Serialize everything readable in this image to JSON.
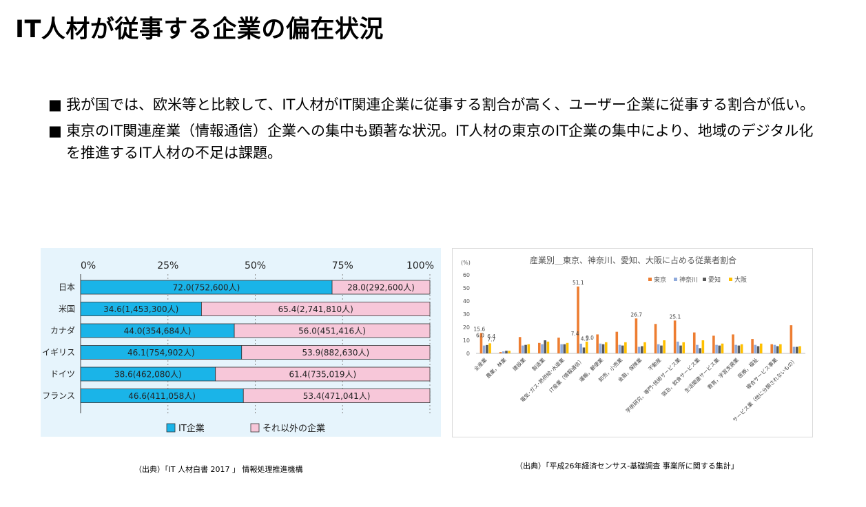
{
  "title": "IT人材が従事する企業の偏在状況",
  "bullets": [
    {
      "marker": "■",
      "text": "我が国では、欧米等と比較して、IT人材がIT関連企業に従事する割合が高く、ユーザー企業に従事する割合が低い。"
    },
    {
      "marker": "■",
      "text": "東京のIT関連産業（情報通信）企業への集中も顕著な状況。IT人材の東京のIT企業の集中により、地域のデジタル化を推進するIT人材の不足は課題。"
    }
  ],
  "source_left": "（出典）「IT 人材白書 2017 」 情報処理推進機構",
  "source_right": "（出典）「平成26年経済センサス-基礎調査 事業所に関する集計」",
  "chart_data": [
    {
      "type": "bar",
      "orientation": "horizontal",
      "stacked": true,
      "x_ticks": [
        "0%",
        "25%",
        "50%",
        "75%",
        "100%"
      ],
      "xlim": [
        0,
        100
      ],
      "categories": [
        "日本",
        "米国",
        "カナダ",
        "イギリス",
        "ドイツ",
        "フランス"
      ],
      "series": [
        {
          "name": "IT企業",
          "color": "#1ab4e8",
          "values": [
            72.0,
            34.6,
            44.0,
            46.1,
            38.6,
            46.6
          ],
          "labels": [
            "72.0(752,600人)",
            "34.6(1,453,300人)",
            "44.0(354,684人)",
            "46.1(754,902人)",
            "38.6(462,080人)",
            "46.6(411,058人)"
          ]
        },
        {
          "name": "それ以外の企業",
          "color": "#f7c7d9",
          "values": [
            28.0,
            65.4,
            56.0,
            53.9,
            61.4,
            53.4
          ],
          "labels": [
            "28.0(292,600人)",
            "65.4(2,741,810人)",
            "56.0(451,416人)",
            "53.9(882,630人)",
            "61.4(735,019人)",
            "53.4(471,041人)"
          ]
        }
      ],
      "legend_position": "bottom"
    },
    {
      "type": "bar",
      "title": "産業別＿東京、神奈川、愛知、大阪に占める従業者割合",
      "ylabel": "(%)",
      "ylim": [
        0,
        60
      ],
      "y_ticks": [
        0,
        10,
        20,
        30,
        40,
        50,
        60
      ],
      "categories": [
        "全産業",
        "農業，林業",
        "建設業",
        "製造業",
        "電気･ガス･熱供給･水道業",
        "IT産業（情報通信）",
        "運輸，郵便業",
        "卸売，小売業",
        "金融，保険業",
        "不動産",
        "学術研究，専門･技術サービス業",
        "宿泊，飲食サービス業",
        "生活関連サービス業",
        "教育，学習支援業",
        "医療，福祉",
        "複合サービス事業",
        "サービス業（他に分類されないもの）"
      ],
      "series": [
        {
          "name": "東京",
          "color": "#ed7d31",
          "values": [
            15.6,
            1.0,
            12.5,
            8.0,
            12.0,
            51.1,
            14.5,
            16.5,
            26.7,
            22.5,
            25.1,
            16.0,
            13.5,
            14.5,
            11.0,
            7.0,
            21.5
          ]
        },
        {
          "name": "神奈川",
          "color": "#8faadc",
          "values": [
            6.0,
            1.5,
            6.0,
            7.0,
            7.0,
            7.4,
            7.5,
            6.5,
            5.0,
            7.0,
            9.0,
            6.5,
            6.5,
            6.5,
            6.5,
            6.5,
            5.0
          ]
        },
        {
          "name": "愛知",
          "color": "#595959",
          "values": [
            6.4,
            2.0,
            6.5,
            10.0,
            7.0,
            4.5,
            7.0,
            6.0,
            5.5,
            6.0,
            6.0,
            4.0,
            6.0,
            6.0,
            5.5,
            5.5,
            5.0
          ]
        },
        {
          "name": "大阪",
          "color": "#ffc000",
          "values": [
            7.7,
            2.0,
            7.0,
            9.0,
            8.0,
            9.0,
            8.5,
            8.5,
            8.5,
            10.0,
            8.5,
            10.0,
            7.5,
            7.0,
            7.5,
            7.0,
            5.5
          ]
        }
      ],
      "data_labels": [
        {
          "category": "全産業",
          "series": "東京",
          "text": "15.6"
        },
        {
          "category": "全産業",
          "series": "神奈川",
          "text": "6.0"
        },
        {
          "category": "全産業",
          "series": "愛知",
          "text": "6.4"
        },
        {
          "category": "全産業",
          "series": "大阪",
          "text": "7.7"
        },
        {
          "category": "IT産業（情報通信）",
          "series": "東京",
          "text": "51.1"
        },
        {
          "category": "IT産業（情報通信）",
          "series": "神奈川",
          "text": "7.4"
        },
        {
          "category": "IT産業（情報通信）",
          "series": "愛知",
          "text": "4.5"
        },
        {
          "category": "IT産業（情報通信）",
          "series": "大阪",
          "text": "9.0"
        },
        {
          "category": "金融，保険業",
          "series": "東京",
          "text": "26.7"
        },
        {
          "category": "学術研究，専門･技術サービス業",
          "series": "東京",
          "text": "25.1"
        }
      ],
      "legend_position": "top"
    }
  ]
}
